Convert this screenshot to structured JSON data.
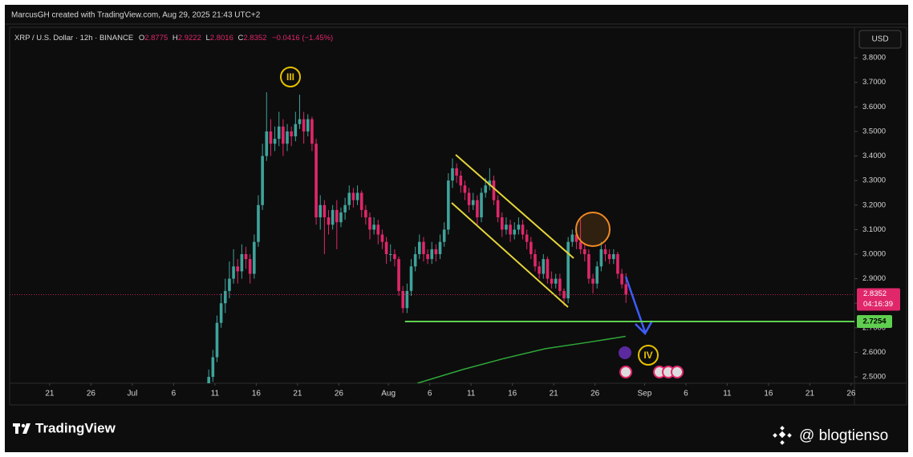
{
  "chart_data": {
    "type": "candlestick",
    "header": "MarcusGH created with TradingView.com, Aug 29, 2025 21:43 UTC+2",
    "title": "XRP / U.S. Dollar · 12h · BINANCE",
    "ohlc_prefixes": [
      "O",
      "H",
      "L",
      "C"
    ],
    "change": "−0.0416 (−1.45%)",
    "currency": "USD",
    "countdown": "04:16:39",
    "up_color": "#3fa39b",
    "down_color": "#e0276a",
    "x": [
      19.25,
      19.75,
      20.25,
      20.75,
      21.25,
      21.75,
      22.25,
      22.75,
      23.25,
      23.75,
      24.25,
      24.75,
      25.25,
      25.75,
      26.25,
      26.75,
      27.25,
      27.75,
      28.25,
      28.75,
      29.25,
      29.75,
      30.25,
      30.75,
      31.25,
      31.75,
      32.25,
      32.75,
      33.25,
      33.75,
      34.25,
      34.75,
      35.25,
      35.75,
      36.25,
      36.75,
      37.25,
      37.75,
      38.25,
      38.75,
      39.25,
      39.75,
      40.25,
      40.75,
      41.25,
      41.75,
      42.25,
      42.75,
      43.25,
      43.75,
      44.25,
      44.75,
      45.25,
      45.75,
      46.25,
      46.75,
      47.25,
      47.75,
      48.25,
      48.75,
      49.25,
      49.75,
      50.25,
      50.75,
      51.25,
      51.75,
      52.25,
      52.75,
      53.25,
      53.75,
      54.25,
      54.75,
      55.25,
      55.75,
      56.25,
      56.75,
      57.25,
      57.75,
      58.25,
      58.75,
      59.25,
      59.75,
      60.25,
      60.75,
      61.25,
      61.75,
      62.25,
      62.75,
      63.25,
      63.75,
      64.25,
      64.75,
      65.25,
      65.75,
      66.25,
      66.75,
      67.25,
      67.75,
      68.25,
      68.75,
      69.25,
      69.75
    ],
    "candles": [
      [
        2.45,
        2.53,
        2.43,
        2.5
      ],
      [
        2.5,
        2.61,
        2.48,
        2.58
      ],
      [
        2.58,
        2.75,
        2.56,
        2.72
      ],
      [
        2.72,
        2.84,
        2.7,
        2.8
      ],
      [
        2.8,
        2.9,
        2.76,
        2.85
      ],
      [
        2.85,
        2.97,
        2.82,
        2.9
      ],
      [
        2.9,
        3.02,
        2.88,
        2.95
      ],
      [
        2.95,
        2.98,
        2.88,
        2.93
      ],
      [
        2.93,
        3.04,
        2.9,
        3.0
      ],
      [
        3.0,
        3.03,
        2.94,
        2.98
      ],
      [
        2.98,
        3.0,
        2.88,
        2.92
      ],
      [
        2.92,
        3.08,
        2.9,
        3.05
      ],
      [
        3.05,
        3.24,
        3.03,
        3.2
      ],
      [
        3.2,
        3.45,
        3.18,
        3.4
      ],
      [
        3.4,
        3.66,
        3.38,
        3.5
      ],
      [
        3.5,
        3.55,
        3.4,
        3.45
      ],
      [
        3.45,
        3.52,
        3.42,
        3.47
      ],
      [
        3.47,
        3.58,
        3.44,
        3.52
      ],
      [
        3.52,
        3.55,
        3.4,
        3.45
      ],
      [
        3.45,
        3.53,
        3.42,
        3.5
      ],
      [
        3.5,
        3.52,
        3.44,
        3.48
      ],
      [
        3.48,
        3.58,
        3.46,
        3.53
      ],
      [
        3.53,
        3.65,
        3.51,
        3.55
      ],
      [
        3.55,
        3.58,
        3.45,
        3.5
      ],
      [
        3.5,
        3.57,
        3.48,
        3.55
      ],
      [
        3.55,
        3.56,
        3.42,
        3.45
      ],
      [
        3.45,
        3.47,
        3.12,
        3.15
      ],
      [
        3.15,
        3.24,
        3.1,
        3.2
      ],
      [
        3.2,
        3.22,
        3.0,
        3.15
      ],
      [
        3.15,
        3.18,
        3.08,
        3.12
      ],
      [
        3.12,
        3.2,
        3.1,
        3.18
      ],
      [
        3.18,
        3.22,
        3.02,
        3.13
      ],
      [
        3.13,
        3.19,
        3.11,
        3.17
      ],
      [
        3.17,
        3.23,
        3.14,
        3.2
      ],
      [
        3.2,
        3.28,
        3.18,
        3.25
      ],
      [
        3.25,
        3.27,
        3.19,
        3.22
      ],
      [
        3.22,
        3.28,
        3.2,
        3.25
      ],
      [
        3.25,
        3.26,
        3.15,
        3.18
      ],
      [
        3.18,
        3.2,
        3.12,
        3.15
      ],
      [
        3.15,
        3.17,
        3.06,
        3.1
      ],
      [
        3.1,
        3.15,
        3.08,
        3.12
      ],
      [
        3.12,
        3.14,
        3.04,
        3.08
      ],
      [
        3.08,
        3.1,
        3.02,
        3.05
      ],
      [
        3.05,
        3.07,
        2.96,
        3.0
      ],
      [
        3.0,
        3.04,
        2.97,
        3.0
      ],
      [
        3.0,
        3.02,
        2.95,
        2.98
      ],
      [
        2.98,
        2.99,
        2.83,
        2.85
      ],
      [
        2.85,
        2.87,
        2.76,
        2.78
      ],
      [
        2.78,
        2.88,
        2.76,
        2.85
      ],
      [
        2.85,
        2.98,
        2.83,
        2.95
      ],
      [
        2.95,
        3.03,
        2.93,
        3.0
      ],
      [
        3.0,
        3.08,
        2.98,
        3.05
      ],
      [
        3.05,
        3.07,
        2.97,
        3.0
      ],
      [
        3.0,
        3.02,
        2.96,
        2.98
      ],
      [
        2.98,
        3.05,
        2.96,
        3.02
      ],
      [
        3.02,
        3.04,
        2.97,
        3.0
      ],
      [
        3.0,
        3.08,
        2.98,
        3.05
      ],
      [
        3.05,
        3.13,
        3.03,
        3.1
      ],
      [
        3.1,
        3.33,
        3.08,
        3.3
      ],
      [
        3.3,
        3.39,
        3.27,
        3.35
      ],
      [
        3.35,
        3.37,
        3.29,
        3.32
      ],
      [
        3.32,
        3.34,
        3.25,
        3.28
      ],
      [
        3.28,
        3.3,
        3.22,
        3.25
      ],
      [
        3.25,
        3.27,
        3.17,
        3.2
      ],
      [
        3.2,
        3.25,
        3.18,
        3.22
      ],
      [
        3.22,
        3.24,
        3.12,
        3.15
      ],
      [
        3.15,
        3.27,
        3.13,
        3.25
      ],
      [
        3.25,
        3.31,
        3.23,
        3.28
      ],
      [
        3.28,
        3.35,
        3.26,
        3.3
      ],
      [
        3.3,
        3.32,
        3.2,
        3.22
      ],
      [
        3.22,
        3.24,
        3.13,
        3.15
      ],
      [
        3.15,
        3.17,
        3.07,
        3.1
      ],
      [
        3.1,
        3.15,
        3.08,
        3.12
      ],
      [
        3.12,
        3.14,
        3.05,
        3.08
      ],
      [
        3.08,
        3.13,
        3.06,
        3.1
      ],
      [
        3.1,
        3.15,
        3.08,
        3.12
      ],
      [
        3.12,
        3.14,
        3.06,
        3.08
      ],
      [
        3.08,
        3.1,
        3.02,
        3.05
      ],
      [
        3.05,
        3.07,
        2.98,
        3.0
      ],
      [
        3.0,
        3.02,
        2.93,
        2.95
      ],
      [
        2.95,
        2.97,
        2.9,
        2.92
      ],
      [
        2.92,
        3.0,
        2.9,
        2.98
      ],
      [
        2.98,
        2.99,
        2.88,
        2.9
      ],
      [
        2.9,
        2.93,
        2.86,
        2.88
      ],
      [
        2.88,
        2.92,
        2.86,
        2.9
      ],
      [
        2.9,
        2.92,
        2.83,
        2.85
      ],
      [
        2.85,
        2.86,
        2.79,
        2.82
      ],
      [
        2.82,
        3.07,
        2.8,
        3.05
      ],
      [
        3.05,
        3.1,
        3.03,
        3.08
      ],
      [
        3.08,
        3.1,
        3.02,
        3.05
      ],
      [
        3.05,
        3.14,
        3.0,
        3.02
      ],
      [
        3.02,
        3.04,
        2.97,
        3.0
      ],
      [
        3.0,
        3.02,
        2.88,
        2.9
      ],
      [
        2.9,
        2.92,
        2.84,
        2.88
      ],
      [
        2.88,
        2.97,
        2.86,
        2.95
      ],
      [
        2.95,
        3.05,
        2.93,
        3.02
      ],
      [
        3.02,
        3.04,
        2.97,
        3.0
      ],
      [
        3.0,
        3.02,
        2.96,
        2.98
      ],
      [
        2.98,
        3.02,
        2.96,
        3.0
      ],
      [
        3.0,
        3.01,
        2.9,
        2.92
      ],
      [
        2.92,
        2.94,
        2.86,
        2.8768
      ],
      [
        2.8775,
        2.9222,
        2.8016,
        2.8352
      ]
    ],
    "moving_average": {
      "color": "#2fa83a",
      "x": [
        44.5,
        50,
        55,
        60,
        65,
        69.7
      ],
      "values": [
        2.474,
        2.53,
        2.575,
        2.615,
        2.64,
        2.665
      ]
    },
    "support": {
      "value": 2.7254,
      "start_x": 43,
      "color": "#5fcf4f"
    },
    "annotations": [
      "III",
      "IV"
    ],
    "xlim": [
      -4.85,
      97.4
    ],
    "xticks": [
      {
        "value": 0,
        "label": "21"
      },
      {
        "value": 5,
        "label": "26"
      },
      {
        "value": 10,
        "label": "Jul"
      },
      {
        "value": 15,
        "label": "6"
      },
      {
        "value": 20,
        "label": "11"
      },
      {
        "value": 25,
        "label": "16"
      },
      {
        "value": 30,
        "label": "21"
      },
      {
        "value": 35,
        "label": "26"
      },
      {
        "value": 41,
        "label": "Aug"
      },
      {
        "value": 46,
        "label": "6"
      },
      {
        "value": 51,
        "label": "11"
      },
      {
        "value": 56,
        "label": "16"
      },
      {
        "value": 61,
        "label": "21"
      },
      {
        "value": 66,
        "label": "26"
      },
      {
        "value": 72,
        "label": "Sep"
      },
      {
        "value": 77,
        "label": "6"
      },
      {
        "value": 82,
        "label": "11"
      },
      {
        "value": 87,
        "label": "16"
      },
      {
        "value": 92,
        "label": "21"
      },
      {
        "value": 97,
        "label": "26"
      }
    ],
    "ylim": [
      2.474,
      3.918
    ],
    "yticks": [
      {
        "value": 2.5,
        "label": "2.5000"
      },
      {
        "value": 2.6,
        "label": "2.6000"
      },
      {
        "value": 2.7,
        "label": "2.7000"
      },
      {
        "value": 2.8,
        "label": "2.8000"
      },
      {
        "value": 2.9,
        "label": "2.9000"
      },
      {
        "value": 3.0,
        "label": "3.0000"
      },
      {
        "value": 3.1,
        "label": "3.1000"
      },
      {
        "value": 3.2,
        "label": "3.2000"
      },
      {
        "value": 3.3,
        "label": "3.3000"
      },
      {
        "value": 3.4,
        "label": "3.4000"
      },
      {
        "value": 3.5,
        "label": "3.5000"
      },
      {
        "value": 3.6,
        "label": "3.6000"
      },
      {
        "value": 3.7,
        "label": "3.7000"
      },
      {
        "value": 3.8,
        "label": "3.8000"
      }
    ],
    "grid": false,
    "logo": "TradingView",
    "watermark": "@ blogtienso"
  }
}
